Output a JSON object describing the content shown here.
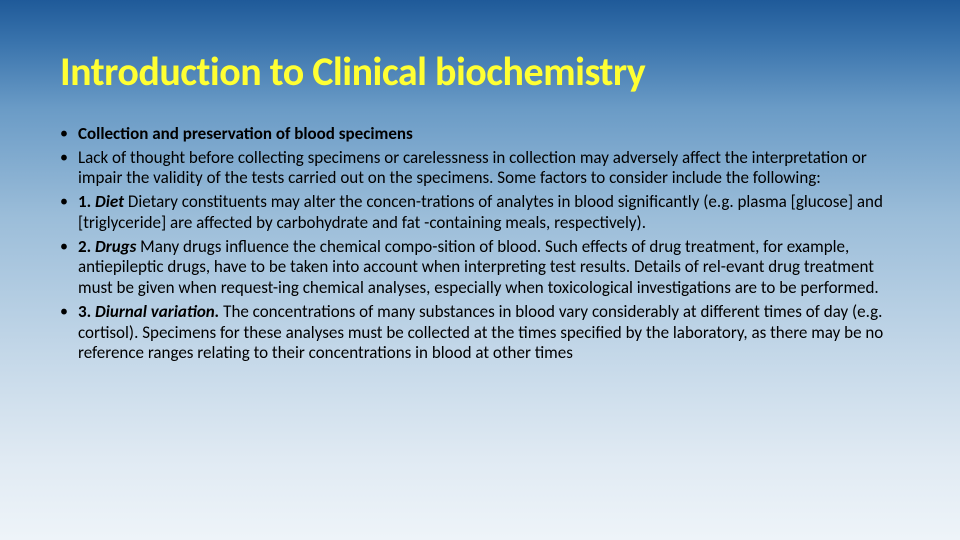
{
  "title": "Introduction to Clinical biochemistry",
  "bullets": [
    {
      "prefix_bold": "Collection and preservation of blood specimens",
      "rest": ""
    },
    {
      "prefix_bold": "",
      "rest": "Lack of thought before collecting specimens or carelessness in collection may adversely affect the interpretation or impair the validity of the tests carried out on the specimens. Some factors to consider include the following:"
    },
    {
      "num_bold": "1. ",
      "label_bolditalic": "Diet",
      "rest": " Dietary constituents may alter the concen-trations of analytes in blood significantly (e.g. plasma [glucose] and [triglyceride] are affected by carbohydrate and fat -containing meals, respectively)."
    },
    {
      "num_bold": "2. ",
      "label_bolditalic": "Drugs",
      "rest": " Many drugs influence the chemical compo-sition of blood. Such effects of drug treatment, for example, antiepileptic drugs, have to be taken into account when interpreting test results. Details of rel-evant drug treatment must be given when request-ing chemical analyses, especially when toxicological investigations are to be performed."
    },
    {
      "num_bold": "3. ",
      "label_bolditalic": "Diurnal variation.",
      "rest": " The concentrations of many substances in blood vary considerably at different times of day (e.g. cortisol). Specimens for these analyses must be collected at the times specified by the laboratory, as there may be no reference ranges relating to their concentrations in blood at other times"
    }
  ]
}
